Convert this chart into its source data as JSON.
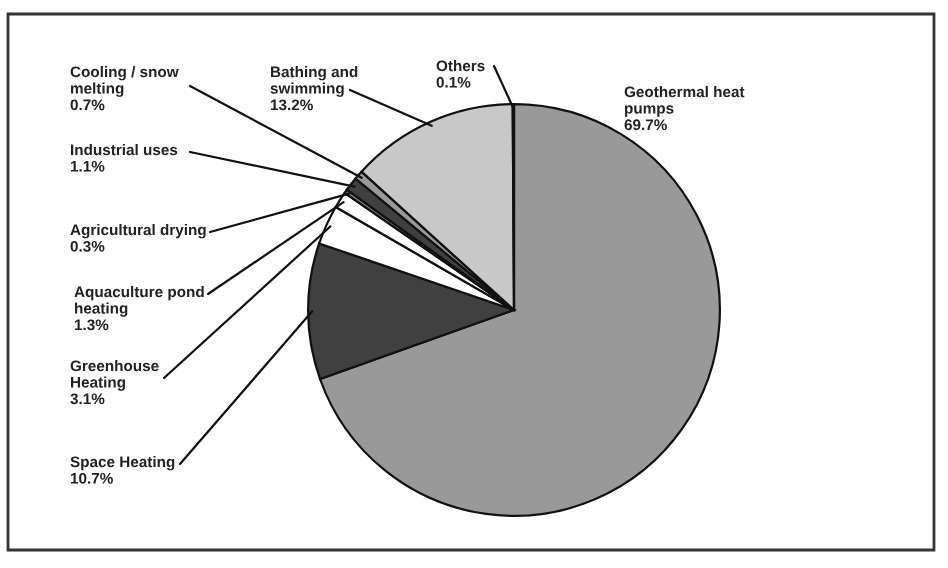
{
  "chart_data": {
    "type": "pie",
    "categories": [
      "Geothermal heat pumps",
      "Space Heating",
      "Greenhouse Heating",
      "Aquaculture pond heating",
      "Agricultural drying",
      "Industrial uses",
      "Cooling / snow melting",
      "Bathing and swimming",
      "Others"
    ],
    "values": [
      69.7,
      10.7,
      3.1,
      1.3,
      0.3,
      1.1,
      0.7,
      13.2,
      0.1
    ],
    "colors": [
      "#999999",
      "#404040",
      "#ffffff",
      "#ffffff",
      "#808080",
      "#404040",
      "#999999",
      "#c8c8c8",
      "#ffffff"
    ],
    "value_labels": [
      "69.7%",
      "10.7%",
      "3.1%",
      "1.3%",
      "0.3%",
      "1.1%",
      "0.7%",
      "13.2%",
      "0.1%"
    ],
    "legend": false
  }
}
